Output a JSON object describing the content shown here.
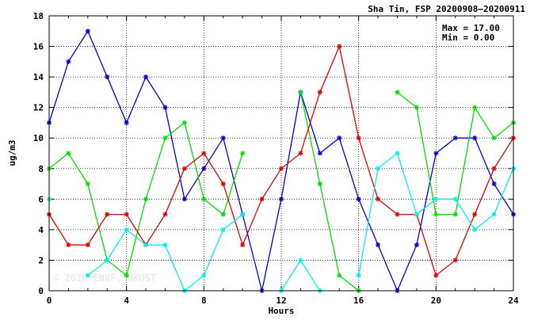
{
  "chart_data": {
    "type": "line",
    "title": "Sha Tin, FSP 20200908–20200911",
    "xlabel": "Hours",
    "ylabel": "ug/m3",
    "xlim": [
      0,
      24
    ],
    "ylim": [
      0,
      18
    ],
    "xticks": [
      0,
      4,
      8,
      12,
      16,
      20,
      24
    ],
    "yticks": [
      0,
      2,
      4,
      6,
      8,
      10,
      12,
      14,
      16,
      18
    ],
    "grid": true,
    "stats": {
      "max_label": "Max = 17.00",
      "min_label": "Min =  0.00"
    },
    "watermark": "© 2020 ENVF, HKUST",
    "x": [
      0,
      1,
      2,
      3,
      4,
      5,
      6,
      7,
      8,
      9,
      10,
      11,
      12,
      13,
      14,
      15,
      16,
      17,
      18,
      19,
      20,
      21,
      22,
      23,
      24
    ],
    "series": [
      {
        "color": "#0000cc",
        "values": [
          11,
          15,
          17,
          14,
          11,
          14,
          12,
          6,
          8,
          10,
          5,
          0,
          6,
          13,
          9,
          10,
          6,
          3,
          0,
          3,
          9,
          10,
          10,
          7,
          5
        ]
      },
      {
        "color": "#00dd00",
        "values": [
          8,
          9,
          7,
          2,
          1,
          6,
          10,
          11,
          6,
          5,
          9,
          null,
          null,
          13,
          7,
          1,
          0,
          null,
          13,
          12,
          5,
          5,
          12,
          10,
          11
        ]
      },
      {
        "color": "#dd0000",
        "values": [
          5,
          3,
          3,
          5,
          5,
          3,
          5,
          8,
          9,
          7,
          3,
          6,
          8,
          9,
          13,
          16,
          10,
          6,
          5,
          5,
          1,
          2,
          5,
          8,
          10
        ]
      },
      {
        "color": "#00eeee",
        "values": [
          6,
          null,
          1,
          2,
          4,
          3,
          3,
          0,
          1,
          4,
          5,
          null,
          0,
          2,
          0,
          null,
          1,
          8,
          9,
          5,
          6,
          6,
          4,
          5,
          8
        ]
      }
    ]
  }
}
